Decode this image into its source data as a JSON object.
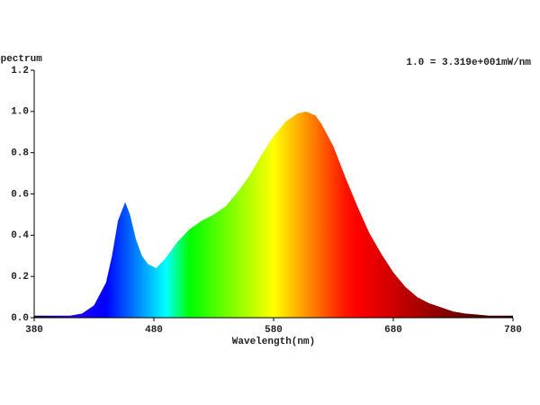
{
  "chart_data": {
    "type": "area",
    "title": "Spectrum",
    "annotation": "1.0 = 3.319e+001mW/nm",
    "xlabel": "Wavelength(nm)",
    "x": [
      380,
      390,
      400,
      410,
      420,
      430,
      440,
      445,
      450,
      456,
      460,
      465,
      470,
      475,
      482,
      490,
      500,
      510,
      520,
      530,
      540,
      550,
      560,
      570,
      580,
      590,
      600,
      607,
      615,
      620,
      630,
      640,
      650,
      660,
      670,
      680,
      690,
      700,
      710,
      720,
      730,
      740,
      750,
      760,
      770,
      780
    ],
    "values": [
      0.01,
      0.01,
      0.01,
      0.01,
      0.02,
      0.06,
      0.17,
      0.3,
      0.47,
      0.56,
      0.5,
      0.38,
      0.3,
      0.26,
      0.24,
      0.29,
      0.37,
      0.43,
      0.47,
      0.5,
      0.54,
      0.61,
      0.69,
      0.79,
      0.88,
      0.95,
      0.99,
      1.0,
      0.98,
      0.94,
      0.83,
      0.68,
      0.54,
      0.41,
      0.31,
      0.22,
      0.15,
      0.1,
      0.07,
      0.05,
      0.03,
      0.02,
      0.015,
      0.01,
      0.01,
      0.01
    ],
    "xlim": [
      380,
      780
    ],
    "xticks": [
      380,
      480,
      580,
      680,
      780
    ],
    "ylim": [
      0,
      1.2
    ],
    "yticks": [
      {
        "value": 0,
        "label": "0.0"
      },
      0.2,
      0.4,
      0.6,
      0.8,
      {
        "value": 1,
        "label": "1.0"
      },
      1.2
    ],
    "grid": false
  }
}
